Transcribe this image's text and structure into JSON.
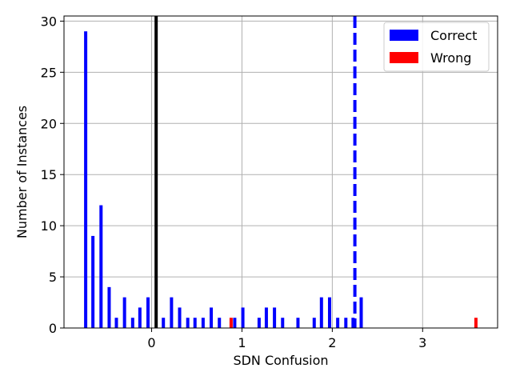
{
  "chart_data": {
    "type": "bar",
    "xlabel": "SDN Confusion",
    "ylabel": "Number of Instances",
    "xlim": [
      -0.97,
      3.83
    ],
    "ylim": [
      0,
      30.5
    ],
    "xticks": [
      0,
      1,
      2,
      3
    ],
    "yticks": [
      0,
      5,
      10,
      15,
      20,
      25,
      30
    ],
    "grid": true,
    "legend_position": "top-right",
    "series": [
      {
        "name": "Correct",
        "color": "#0000ff",
        "x": [
          -0.73,
          -0.65,
          -0.56,
          -0.47,
          -0.39,
          -0.3,
          -0.21,
          -0.13,
          -0.04,
          0.13,
          0.22,
          0.31,
          0.4,
          0.48,
          0.57,
          0.66,
          0.75,
          0.92,
          1.01,
          1.19,
          1.27,
          1.36,
          1.45,
          1.62,
          1.8,
          1.88,
          1.97,
          2.06,
          2.15,
          2.23,
          2.32
        ],
        "values": [
          29,
          9,
          12,
          4,
          1,
          3,
          1,
          2,
          3,
          1,
          3,
          2,
          1,
          1,
          1,
          2,
          1,
          1,
          2,
          1,
          2,
          2,
          1,
          1,
          1,
          3,
          3,
          1,
          1,
          1,
          3
        ]
      },
      {
        "name": "Wrong",
        "color": "#ff0000",
        "x": [
          0.88,
          3.59
        ],
        "values": [
          1,
          1
        ]
      }
    ],
    "vlines": [
      {
        "x": 0.05,
        "color": "#000000",
        "style": "solid"
      },
      {
        "x": 2.25,
        "color": "#0000ff",
        "style": "dashed"
      }
    ]
  }
}
